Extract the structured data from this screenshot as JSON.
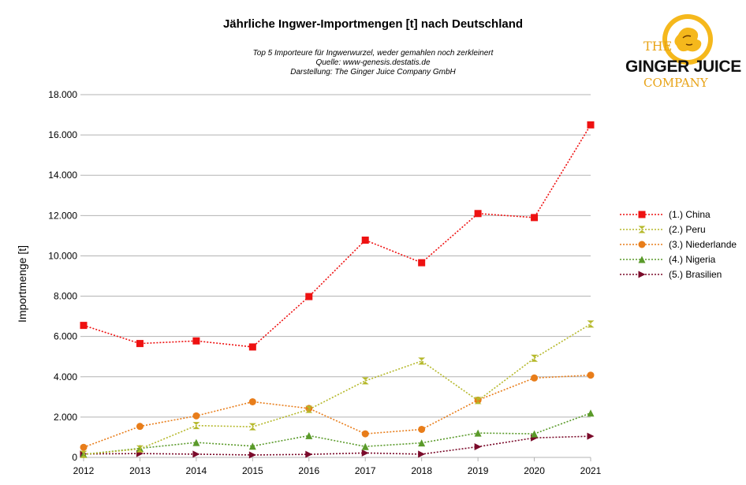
{
  "chart_data": {
    "type": "line",
    "title": "Jährliche Ingwer-Importmengen [t] nach Deutschland",
    "subtitle": [
      "Top 5 Importeure für Ingwerwurzel, weder gemahlen noch zerkleinert",
      "Quelle: www-genesis.destatis.de",
      "Darstellung: The Ginger Juice Company GmbH"
    ],
    "xlabel": "",
    "ylabel": "Importmenge [t]",
    "x": [
      "2012",
      "2013",
      "2014",
      "2015",
      "2016",
      "2017",
      "2018",
      "2019",
      "2020",
      "2021"
    ],
    "ylim": [
      0,
      18000
    ],
    "yticks": [
      "0",
      "2.000",
      "4.000",
      "6.000",
      "8.000",
      "10.000",
      "12.000",
      "14.000",
      "16.000",
      "18.000"
    ],
    "grid": true,
    "legend_position": "right",
    "series": [
      {
        "name": "(1.) China",
        "color": "#ee1111",
        "marker": "square",
        "values": [
          6550,
          5650,
          5780,
          5480,
          7980,
          10780,
          9660,
          12100,
          11900,
          16500
        ]
      },
      {
        "name": "(2.) Peru",
        "color": "#b5b82a",
        "marker": "hourglass",
        "values": [
          150,
          420,
          1580,
          1520,
          2380,
          3800,
          4780,
          2820,
          4920,
          6620
        ]
      },
      {
        "name": "(3.) Niederlande",
        "color": "#e87d1a",
        "marker": "circle",
        "values": [
          500,
          1540,
          2060,
          2760,
          2430,
          1170,
          1390,
          2840,
          3940,
          4080
        ]
      },
      {
        "name": "(4.) Nigeria",
        "color": "#5a9a2a",
        "marker": "triangle-up",
        "values": [
          150,
          450,
          740,
          560,
          1080,
          540,
          720,
          1210,
          1170,
          2200
        ]
      },
      {
        "name": "(5.) Brasilien",
        "color": "#7a0a2a",
        "marker": "triangle-right",
        "values": [
          170,
          190,
          160,
          120,
          150,
          220,
          160,
          530,
          970,
          1050
        ]
      }
    ]
  },
  "logo": {
    "line1": "THE",
    "line2": "GINGER JUICE",
    "line3": "COMPANY",
    "colors": {
      "accent": "#e8a317",
      "text": "#111111"
    }
  }
}
